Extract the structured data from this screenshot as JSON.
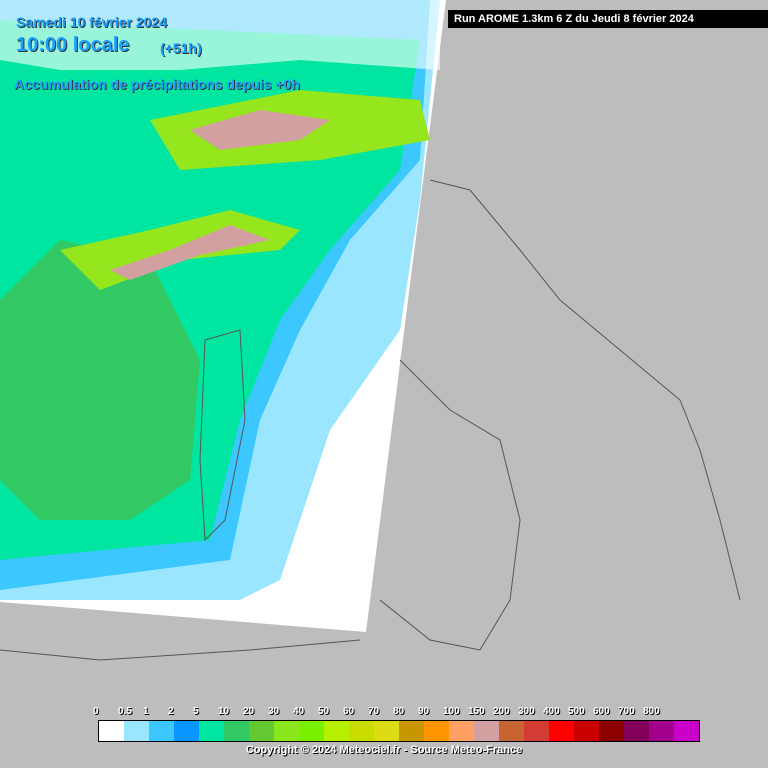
{
  "header": {
    "date": "Samedi 10 février 2024",
    "time": "10:00 locale",
    "lead": "(+51h)",
    "product": "Accumulation de précipitations depuis +0h"
  },
  "run_info": "Run AROME 1.3km 6 Z du Jeudi 8 février 2024",
  "legend": {
    "labels": [
      "0",
      "0.5",
      "1",
      "2",
      "5",
      "10",
      "20",
      "30",
      "40",
      "50",
      "60",
      "70",
      "80",
      "90",
      "100",
      "150",
      "200",
      "300",
      "400",
      "500",
      "600",
      "700",
      "800"
    ],
    "colors": [
      "#ffffff",
      "#9be6ff",
      "#3cc8ff",
      "#0a96ff",
      "#00e6a0",
      "#32c864",
      "#64c832",
      "#8ce61e",
      "#78f000",
      "#b4f000",
      "#c8dc00",
      "#dcdc14",
      "#c89600",
      "#ff9600",
      "#ffa064",
      "#d2a0a0",
      "#c86432",
      "#d23c32",
      "#ff0000",
      "#c80000",
      "#8c0000",
      "#82005a",
      "#a0008c"
    ]
  },
  "copyright": "Copyright © 2024 Meteociel.fr - Source Meteo-France"
}
